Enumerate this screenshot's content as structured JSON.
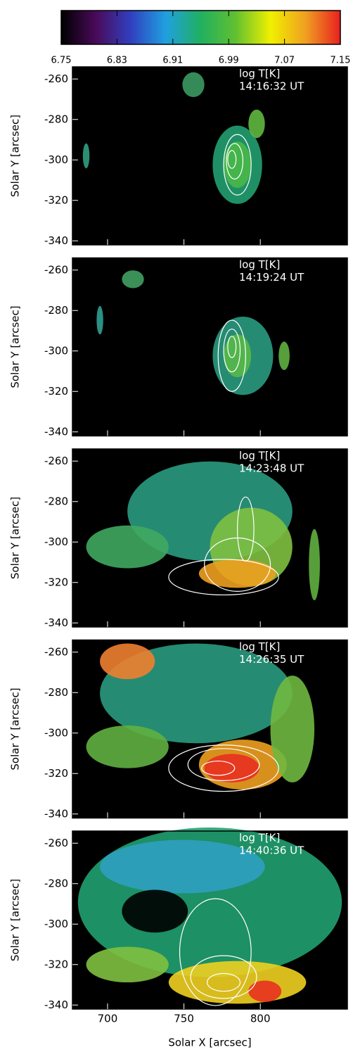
{
  "chart_data": {
    "type": "image",
    "colorbar": {
      "lim": [
        6.75,
        7.15
      ],
      "ticks": [
        6.75,
        6.83,
        6.91,
        6.99,
        7.07,
        7.15
      ],
      "colormap": [
        "#000000",
        "#4a0a5a",
        "#3040c0",
        "#20a0e0",
        "#20b060",
        "#60c030",
        "#f0f000",
        "#f0a020",
        "#e82020"
      ]
    },
    "panels": [
      {
        "label": "log T[K]",
        "time": "14:16:32 UT"
      },
      {
        "label": "log T[K]",
        "time": "14:19:24 UT"
      },
      {
        "label": "log T[K]",
        "time": "14:23:48 UT"
      },
      {
        "label": "log T[K]",
        "time": "14:26:35 UT"
      },
      {
        "label": "log T[K]",
        "time": "14:40:36 UT"
      }
    ],
    "xlim": [
      677,
      857
    ],
    "xticks": [
      700,
      750,
      800
    ],
    "ylim": [
      -342,
      -254
    ],
    "yticks": [
      -260,
      -280,
      -300,
      -320,
      -340
    ],
    "xlabel": "Solar X [arcsec]",
    "ylabel": "Solar Y [arcsec]"
  }
}
